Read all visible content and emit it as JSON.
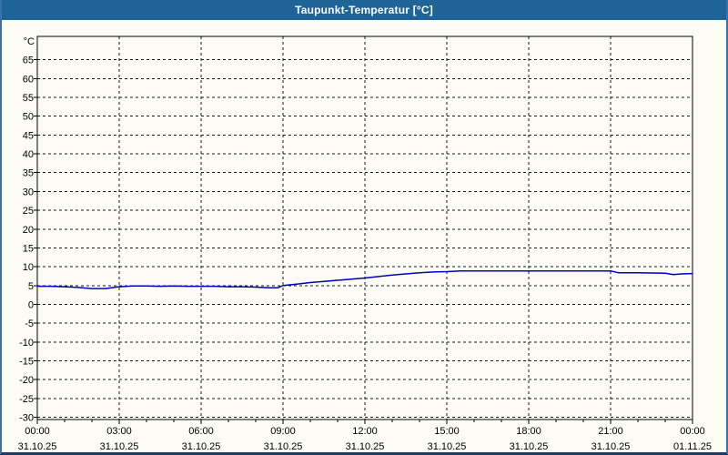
{
  "window": {
    "title": "Taupunkt-Temperatur [°C]"
  },
  "colors": {
    "titlebar": "#1f6496",
    "side_border": "#3a72a4",
    "bottom_border": "#1b3c64",
    "background": "#fcfcf5",
    "grid": "#181818",
    "axis": "#000000",
    "line": "#0000bd",
    "label_text": "#000000",
    "title_text": "#ffffff"
  },
  "chart_data": {
    "type": "line",
    "title": "Taupunkt-Temperatur [°C]",
    "y_unit_label": "°C",
    "ylabel": "",
    "xlabel": "",
    "ylim": [
      -30,
      71
    ],
    "y_tick_min": -30,
    "y_tick_max": 65,
    "y_tick_step": 5,
    "x_hours_total": 24,
    "x_major_tick_hours": 3,
    "x_minor_tick_hours": 1,
    "grid": "dashed",
    "legend": "none",
    "x_labels": [
      {
        "time": "00:00",
        "date": "31.10.25"
      },
      {
        "time": "03:00",
        "date": "31.10.25"
      },
      {
        "time": "06:00",
        "date": "31.10.25"
      },
      {
        "time": "09:00",
        "date": "31.10.25"
      },
      {
        "time": "12:00",
        "date": "31.10.25"
      },
      {
        "time": "15:00",
        "date": "31.10.25"
      },
      {
        "time": "18:00",
        "date": "31.10.25"
      },
      {
        "time": "21:00",
        "date": "31.10.25"
      },
      {
        "time": "00:00",
        "date": "01.11.25"
      }
    ],
    "series": [
      {
        "name": "Taupunkt",
        "color": "#0000bd",
        "points_hour_value": [
          [
            0,
            4.8
          ],
          [
            0.5,
            4.8
          ],
          [
            1,
            4.7
          ],
          [
            1.5,
            4.5
          ],
          [
            2,
            4.2
          ],
          [
            2.5,
            4.2
          ],
          [
            3,
            4.7
          ],
          [
            3.5,
            4.9
          ],
          [
            4,
            4.9
          ],
          [
            4.5,
            4.8
          ],
          [
            5,
            4.9
          ],
          [
            5.5,
            4.8
          ],
          [
            6,
            4.8
          ],
          [
            6.5,
            4.8
          ],
          [
            7,
            4.7
          ],
          [
            7.5,
            4.7
          ],
          [
            8,
            4.6
          ],
          [
            8.5,
            4.4
          ],
          [
            8.8,
            4.4
          ],
          [
            9,
            5.0
          ],
          [
            9.5,
            5.4
          ],
          [
            10,
            5.8
          ],
          [
            10.5,
            6.1
          ],
          [
            11,
            6.4
          ],
          [
            11.5,
            6.7
          ],
          [
            12,
            7.0
          ],
          [
            12.5,
            7.4
          ],
          [
            13,
            7.8
          ],
          [
            13.5,
            8.1
          ],
          [
            14,
            8.4
          ],
          [
            14.5,
            8.6
          ],
          [
            15,
            8.7
          ],
          [
            15.5,
            8.9
          ],
          [
            16,
            8.9
          ],
          [
            17,
            8.9
          ],
          [
            18,
            8.9
          ],
          [
            19,
            8.9
          ],
          [
            20,
            8.9
          ],
          [
            21,
            8.9
          ],
          [
            21.3,
            8.4
          ],
          [
            22,
            8.4
          ],
          [
            23,
            8.3
          ],
          [
            23.3,
            7.9
          ],
          [
            23.6,
            8.1
          ],
          [
            24,
            8.2
          ]
        ]
      }
    ]
  }
}
